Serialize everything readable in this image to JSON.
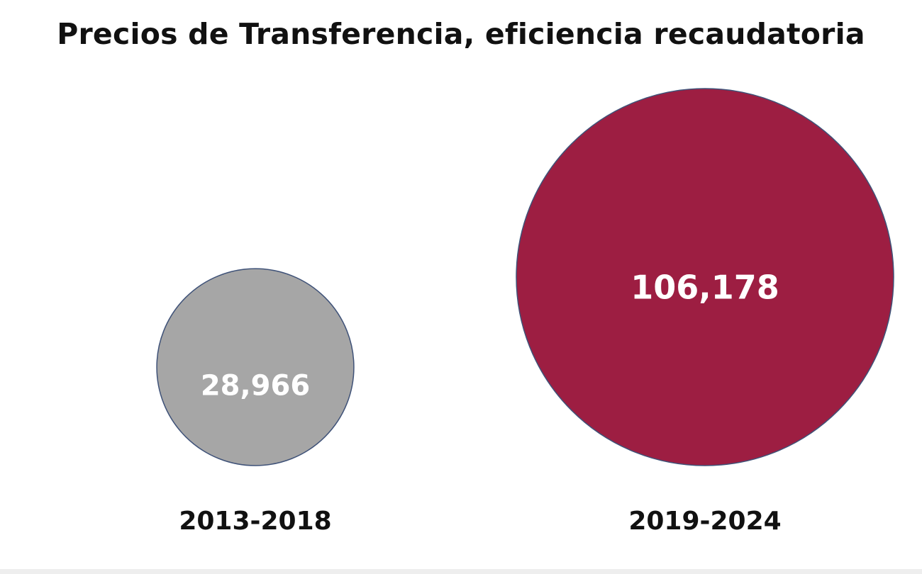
{
  "chart_data": {
    "type": "bubble",
    "title": "Precios de Transferencia, eficiencia recaudatoria",
    "categories": [
      "2013-2018",
      "2019-2024"
    ],
    "values": [
      28966,
      106178
    ],
    "value_labels": [
      "28,966",
      "106,178"
    ],
    "colors": [
      "#a6a6a6",
      "#9d1e42"
    ],
    "outline_color": "#3f5278",
    "value_label_color": "#ffffff",
    "category_label_color": "#111111",
    "legend": "none",
    "grid": false
  }
}
